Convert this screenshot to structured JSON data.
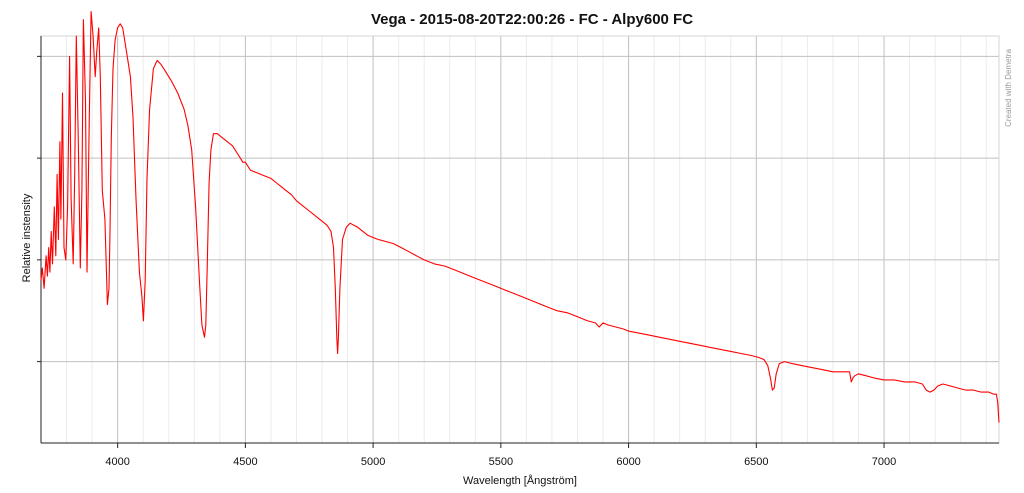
{
  "chart_data": {
    "type": "line",
    "title": "Vega - 2015-08-20T22:00:26 - FC - Alpy600 FC",
    "xlabel": "Wavelength [Ångström]",
    "ylabel": "Relative instensity",
    "watermark": "Created with Demetra",
    "xlim": [
      3700,
      7450
    ],
    "ylim": [
      0,
      1.0
    ],
    "xticks": [
      4000,
      4500,
      5000,
      5500,
      6000,
      6500,
      7000
    ],
    "xtick_labels": [
      "4000",
      "4500",
      "5000",
      "5500",
      "6000",
      "6500",
      "7000"
    ],
    "x_minor_step": 100,
    "yticks": [
      0.2,
      0.45,
      0.7,
      0.95
    ],
    "yticks_labeled": false,
    "grid": true,
    "colors": {
      "line": "#ff0000",
      "major_grid": "#c0c0c0",
      "minor_grid": "#ebebeb",
      "axis": "#222222"
    },
    "series": [
      {
        "x": [
          3700,
          3705,
          3712,
          3720,
          3725,
          3730,
          3735,
          3740,
          3745,
          3752,
          3758,
          3763,
          3768,
          3774,
          3778,
          3784,
          3790,
          3797,
          3804,
          3812,
          3818,
          3826,
          3832,
          3838,
          3846,
          3854,
          3860,
          3866,
          3874,
          3880,
          3889,
          3896,
          3904,
          3912,
          3918,
          3926,
          3932,
          3940,
          3950,
          3960,
          3966,
          3970,
          3975,
          3982,
          3990,
          4000,
          4010,
          4020,
          4035,
          4050,
          4060,
          4072,
          4085,
          4095,
          4101,
          4108,
          4115,
          4125,
          4140,
          4155,
          4170,
          4190,
          4210,
          4235,
          4260,
          4275,
          4290,
          4305,
          4320,
          4330,
          4340,
          4345,
          4350,
          4358,
          4365,
          4375,
          4390,
          4410,
          4430,
          4450,
          4470,
          4480,
          4490,
          4500,
          4520,
          4540,
          4560,
          4580,
          4600,
          4620,
          4640,
          4660,
          4680,
          4700,
          4720,
          4740,
          4760,
          4780,
          4800,
          4820,
          4835,
          4845,
          4852,
          4858,
          4861,
          4864,
          4870,
          4880,
          4895,
          4910,
          4925,
          4940,
          4960,
          4980,
          5000,
          5020,
          5050,
          5080,
          5110,
          5140,
          5170,
          5200,
          5240,
          5280,
          5320,
          5360,
          5400,
          5440,
          5480,
          5520,
          5560,
          5600,
          5640,
          5680,
          5720,
          5760,
          5800,
          5840,
          5870,
          5885,
          5900,
          5920,
          5950,
          5980,
          6000,
          6040,
          6080,
          6120,
          6160,
          6200,
          6240,
          6280,
          6320,
          6360,
          6400,
          6440,
          6480,
          6510,
          6530,
          6545,
          6555,
          6563,
          6570,
          6578,
          6590,
          6610,
          6640,
          6680,
          6720,
          6760,
          6800,
          6840,
          6865,
          6872,
          6878,
          6885,
          6900,
          6930,
          6960,
          7000,
          7040,
          7080,
          7120,
          7150,
          7165,
          7180,
          7195,
          7210,
          7230,
          7260,
          7290,
          7320,
          7350,
          7380,
          7410,
          7430,
          7440,
          7445,
          7450
        ],
        "y": [
          0.4,
          0.43,
          0.38,
          0.46,
          0.41,
          0.48,
          0.42,
          0.52,
          0.44,
          0.58,
          0.46,
          0.66,
          0.5,
          0.74,
          0.55,
          0.86,
          0.48,
          0.45,
          0.58,
          0.95,
          0.6,
          0.44,
          0.66,
          1.0,
          0.74,
          0.43,
          0.62,
          1.04,
          0.84,
          0.42,
          0.8,
          1.06,
          1.0,
          0.9,
          0.96,
          1.02,
          0.9,
          0.62,
          0.55,
          0.34,
          0.38,
          0.52,
          0.75,
          0.92,
          0.99,
          1.02,
          1.03,
          1.02,
          0.96,
          0.9,
          0.8,
          0.6,
          0.42,
          0.36,
          0.3,
          0.4,
          0.65,
          0.82,
          0.92,
          0.94,
          0.93,
          0.91,
          0.89,
          0.86,
          0.82,
          0.78,
          0.72,
          0.58,
          0.4,
          0.29,
          0.26,
          0.29,
          0.42,
          0.64,
          0.72,
          0.76,
          0.76,
          0.75,
          0.74,
          0.73,
          0.71,
          0.7,
          0.69,
          0.69,
          0.67,
          0.665,
          0.66,
          0.655,
          0.65,
          0.64,
          0.63,
          0.62,
          0.61,
          0.595,
          0.585,
          0.575,
          0.565,
          0.555,
          0.545,
          0.535,
          0.52,
          0.48,
          0.38,
          0.26,
          0.22,
          0.26,
          0.38,
          0.5,
          0.53,
          0.54,
          0.535,
          0.53,
          0.52,
          0.51,
          0.505,
          0.5,
          0.495,
          0.49,
          0.48,
          0.47,
          0.46,
          0.45,
          0.44,
          0.435,
          0.425,
          0.415,
          0.405,
          0.395,
          0.385,
          0.375,
          0.365,
          0.355,
          0.345,
          0.335,
          0.325,
          0.32,
          0.31,
          0.3,
          0.295,
          0.285,
          0.295,
          0.29,
          0.285,
          0.28,
          0.275,
          0.27,
          0.265,
          0.26,
          0.255,
          0.25,
          0.245,
          0.24,
          0.235,
          0.23,
          0.225,
          0.22,
          0.215,
          0.21,
          0.205,
          0.19,
          0.16,
          0.13,
          0.135,
          0.17,
          0.195,
          0.2,
          0.195,
          0.19,
          0.185,
          0.18,
          0.175,
          0.175,
          0.175,
          0.15,
          0.16,
          0.165,
          0.17,
          0.165,
          0.16,
          0.155,
          0.155,
          0.15,
          0.15,
          0.145,
          0.13,
          0.125,
          0.13,
          0.14,
          0.145,
          0.14,
          0.135,
          0.13,
          0.13,
          0.125,
          0.125,
          0.12,
          0.12,
          0.1,
          0.05
        ]
      }
    ]
  }
}
